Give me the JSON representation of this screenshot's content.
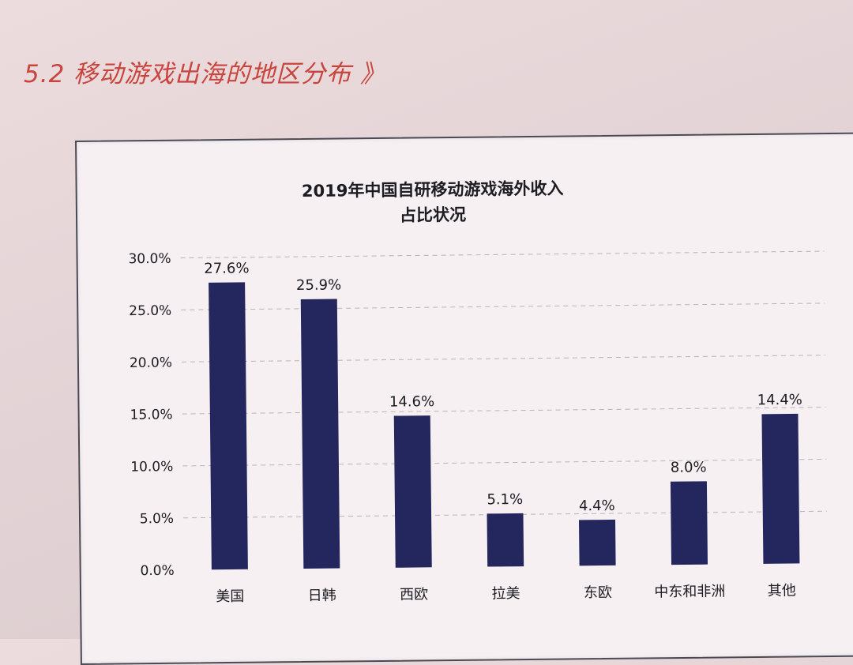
{
  "page": {
    "section_heading": "5.2 移动游戏出海的地区分布 》"
  },
  "chart_data": {
    "type": "bar",
    "title_lines": [
      "2019年中国自研移动游戏海外收入",
      "占比状况"
    ],
    "categories": [
      "美国",
      "日韩",
      "西欧",
      "拉美",
      "东欧",
      "中东和非洲",
      "其他"
    ],
    "values": [
      27.6,
      25.9,
      14.6,
      5.1,
      4.4,
      8.0,
      14.4
    ],
    "data_labels": [
      "27.6%",
      "25.9%",
      "14.6%",
      "5.1%",
      "4.4%",
      "8.0%",
      "14.4%"
    ],
    "y_ticks": [
      "0.0%",
      "5.0%",
      "10.0%",
      "15.0%",
      "20.0%",
      "25.0%",
      "30.0%"
    ],
    "ylim": [
      0,
      30
    ],
    "grid": true,
    "bar_color": "#24265e"
  }
}
